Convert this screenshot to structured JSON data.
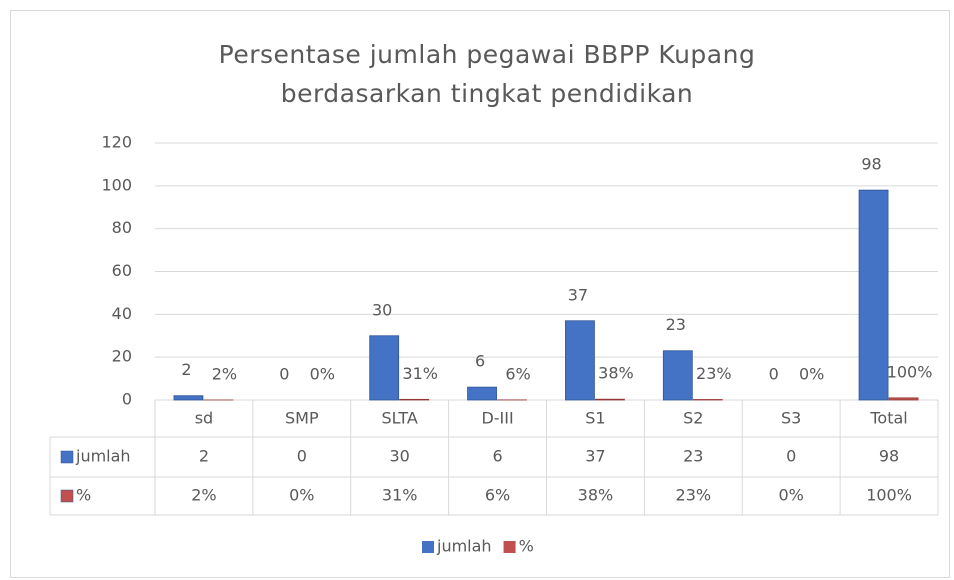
{
  "chart_data": {
    "type": "bar",
    "title": "Persentase jumlah pegawai BBPP Kupang",
    "subtitle": "berdasarkan tingkat pendidikan",
    "categories": [
      "sd",
      "SMP",
      "SLTA",
      "D-III",
      "S1",
      "S2",
      "S3",
      "Total"
    ],
    "series": [
      {
        "name": "jumlah",
        "color": "#4472c4",
        "values": [
          2,
          0,
          30,
          6,
          37,
          23,
          0,
          98
        ]
      },
      {
        "name": "%",
        "color": "#c0504d",
        "values": [
          0.02,
          0,
          0.31,
          0.06,
          0.38,
          0.23,
          0,
          1
        ],
        "value_labels": [
          "2%",
          "0%",
          "31%",
          "6%",
          "38%",
          "23%",
          "0%",
          "100%"
        ]
      }
    ],
    "ylim": [
      0,
      120
    ],
    "yticks": [
      0,
      20,
      40,
      60,
      80,
      100,
      120
    ],
    "grid": true,
    "legend": "bottom"
  }
}
